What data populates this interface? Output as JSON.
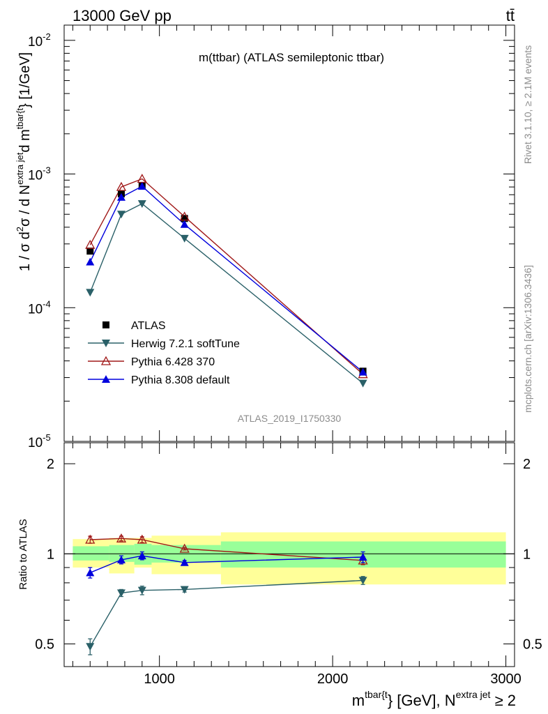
{
  "header": {
    "energy_label": "13000 GeV pp",
    "process_label": "tt̄"
  },
  "side_labels": {
    "rivet": "Rivet 3.1.10, ≥ 2.1M events",
    "mcplots": "mcplots.cern.ch [arXiv:1306.3436]"
  },
  "chart_data": [
    {
      "type": "line",
      "title": "m(ttbar) (ATLAS semileptonic ttbar)",
      "watermark": "ATLAS_2019_I1750330",
      "yscale": "log",
      "ylabel_parts": {
        "pre": "1 / σ d",
        "sup1": "2",
        "mid1": "σ / d N",
        "sup2": "extra jet",
        "mid2": "d m",
        "sup3": "tbar{t",
        "post": "} [1/GeV]"
      },
      "xlim": [
        450,
        3050
      ],
      "ylim": [
        1e-05,
        0.013
      ],
      "ytick_labels": [
        {
          "base": "10",
          "exp": "-5",
          "value": 1e-05
        },
        {
          "base": "10",
          "exp": "-4",
          "value": 0.0001
        },
        {
          "base": "10",
          "exp": "-3",
          "value": 0.001
        },
        {
          "base": "10",
          "exp": "-2",
          "value": 0.01
        }
      ],
      "x": [
        600,
        780,
        900,
        1145,
        2175
      ],
      "series": [
        {
          "name": "ATLAS",
          "values": [
            0.000265,
            0.00071,
            0.00082,
            0.000465,
            3.35e-05
          ],
          "color": "#000000",
          "marker": "square"
        },
        {
          "name": "Herwig 7.2.1 softTune",
          "values": [
            0.00013,
            0.0005,
            0.0006,
            0.00033,
            2.72e-05
          ],
          "color": "#2a6068",
          "marker": "triangle-down"
        },
        {
          "name": "Pythia 6.428 370",
          "values": [
            0.000295,
            0.0008,
            0.00092,
            0.00048,
            3.18e-05
          ],
          "color": "#a01818",
          "marker": "triangle-up-open"
        },
        {
          "name": "Pythia 8.308 default",
          "values": [
            0.00022,
            0.00067,
            0.00081,
            0.00042,
            3.3e-05
          ],
          "color": "#0000dd",
          "marker": "triangle-up"
        }
      ],
      "legend": "middle-left"
    },
    {
      "type": "line",
      "ylabel": "Ratio to ATLAS",
      "yscale": "log",
      "ylim": [
        0.42,
        2.35
      ],
      "ytick_labels": [
        {
          "label": "0.5",
          "value": 0.5
        },
        {
          "label": "1",
          "value": 1
        },
        {
          "label": "2",
          "value": 2
        }
      ],
      "xtick_labels": [
        {
          "label": "1000",
          "value": 1000
        },
        {
          "label": "2000",
          "value": 2000
        },
        {
          "label": "3000",
          "value": 3000
        }
      ],
      "xlabel_parts": {
        "pre": "m",
        "sup1": "tbar{t",
        "mid": "} [GeV], N",
        "sup2": "extra jet",
        "post": " ≥ 2"
      },
      "bins": [
        [
          500,
          710
        ],
        [
          710,
          855
        ],
        [
          855,
          955
        ],
        [
          955,
          1355
        ],
        [
          1355,
          3000
        ]
      ],
      "band_inner": [
        [
          0.95,
          1.06
        ],
        [
          0.94,
          1.07
        ],
        [
          0.92,
          1.08
        ],
        [
          0.935,
          1.07
        ],
        [
          0.9,
          1.1
        ]
      ],
      "band_outer": [
        [
          0.9,
          1.12
        ],
        [
          0.86,
          1.13
        ],
        [
          0.9,
          1.13
        ],
        [
          0.855,
          1.15
        ],
        [
          0.79,
          1.18
        ]
      ],
      "x": [
        600,
        780,
        900,
        1145,
        2175
      ],
      "series": [
        {
          "name": "Herwig 7.2.1 softTune",
          "values": [
            0.49,
            0.74,
            0.755,
            0.76,
            0.815
          ],
          "errors": [
            0.03,
            0.02,
            0.025,
            0.015,
            0.025
          ],
          "color": "#2a6068",
          "marker": "triangle-down"
        },
        {
          "name": "Pythia 6.428 370",
          "values": [
            1.115,
            1.125,
            1.115,
            1.04,
            0.95
          ],
          "errors": [
            0.03,
            0.02,
            0.025,
            0.01,
            0.03
          ],
          "color": "#a01818",
          "marker": "triangle-up-open"
        },
        {
          "name": "Pythia 8.308 default",
          "values": [
            0.865,
            0.955,
            0.985,
            0.935,
            0.975
          ],
          "errors": [
            0.035,
            0.03,
            0.03,
            0.015,
            0.04
          ],
          "color": "#0000dd",
          "marker": "triangle-up"
        }
      ]
    }
  ]
}
